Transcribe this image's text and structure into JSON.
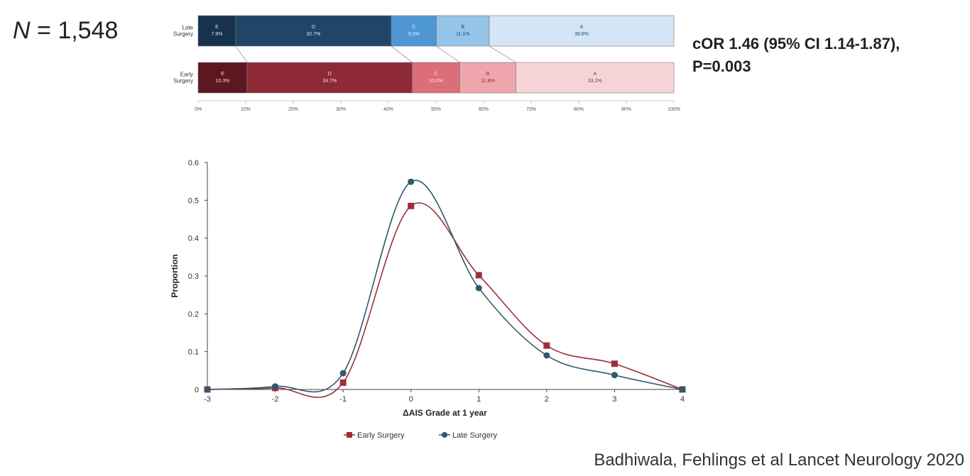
{
  "header": {
    "n_label": "N",
    "n_value": "= 1,548",
    "cor_line1": "cOR 1.46 (95% CI 1.14-1.87),",
    "cor_line2": "P=0.003",
    "citation": "Badhiwala, Fehlings et al Lancet Neurology 2020"
  },
  "chart_data": [
    {
      "type": "bar",
      "orientation": "horizontal-stacked",
      "xlim": [
        0,
        100
      ],
      "x_ticks": [
        "0%",
        "10%",
        "20%",
        "30%",
        "40%",
        "50%",
        "60%",
        "70%",
        "80%",
        "90%",
        "100%"
      ],
      "rows": [
        {
          "label": [
            "Late",
            "Surgery"
          ],
          "segments": [
            {
              "grade": "E",
              "value": 7.9,
              "label": "7.9%",
              "color": "#17324d",
              "text": "#dfe8f2"
            },
            {
              "grade": "D",
              "value": 32.7,
              "label": "32.7%",
              "color": "#1f4668",
              "text": "#dfe8f2"
            },
            {
              "grade": "C",
              "value": 9.5,
              "label": "9.5%",
              "color": "#4e97d4",
              "text": "#e9f2fb"
            },
            {
              "grade": "B",
              "value": 11.1,
              "label": "11.1%",
              "color": "#94c4ea",
              "text": "#1f4668"
            },
            {
              "grade": "A",
              "value": 38.8,
              "label": "38.8%",
              "color": "#d4e6f6",
              "text": "#1f4668"
            }
          ]
        },
        {
          "label": [
            "Early",
            "Surgery"
          ],
          "segments": [
            {
              "grade": "E",
              "value": 10.3,
              "label": "10.3%",
              "color": "#5c1720",
              "text": "#f6dfe1"
            },
            {
              "grade": "D",
              "value": 34.7,
              "label": "34.7%",
              "color": "#8e2a35",
              "text": "#f6dfe1"
            },
            {
              "grade": "C",
              "value": 10.0,
              "label": "10.0%",
              "color": "#db6e78",
              "text": "#fbe7e9"
            },
            {
              "grade": "B",
              "value": 11.8,
              "label": "11.8%",
              "color": "#eea6ac",
              "text": "#8e2a35"
            },
            {
              "grade": "A",
              "value": 33.2,
              "label": "33.2%",
              "color": "#f6d5d8",
              "text": "#8e2a35"
            }
          ]
        }
      ]
    },
    {
      "type": "line",
      "x": [
        -3,
        -2,
        -1,
        0,
        1,
        2,
        3,
        4
      ],
      "xlim": [
        -3,
        4
      ],
      "ylim": [
        0,
        0.6
      ],
      "y_ticks": [
        "0",
        "0.1",
        "0.2",
        "0.3",
        "0.4",
        "0.5",
        "0.6"
      ],
      "x_ticks": [
        "-3",
        "-2",
        "-1",
        "0",
        "1",
        "2",
        "3",
        "4"
      ],
      "xlabel": "ΔAIS Grade at 1 year",
      "ylabel": "Proportion",
      "legend_position": "bottom",
      "series": [
        {
          "name": "Early Surgery",
          "color": "#9c2f3d",
          "marker": "square",
          "values": [
            0.0,
            0.004,
            0.018,
            0.485,
            0.302,
            0.116,
            0.068,
            0.0
          ]
        },
        {
          "name": "Late Surgery",
          "color": "#2e5a6e",
          "marker": "circle",
          "values": [
            0.0,
            0.008,
            0.043,
            0.549,
            0.268,
            0.09,
            0.038,
            0.0
          ]
        }
      ]
    }
  ]
}
